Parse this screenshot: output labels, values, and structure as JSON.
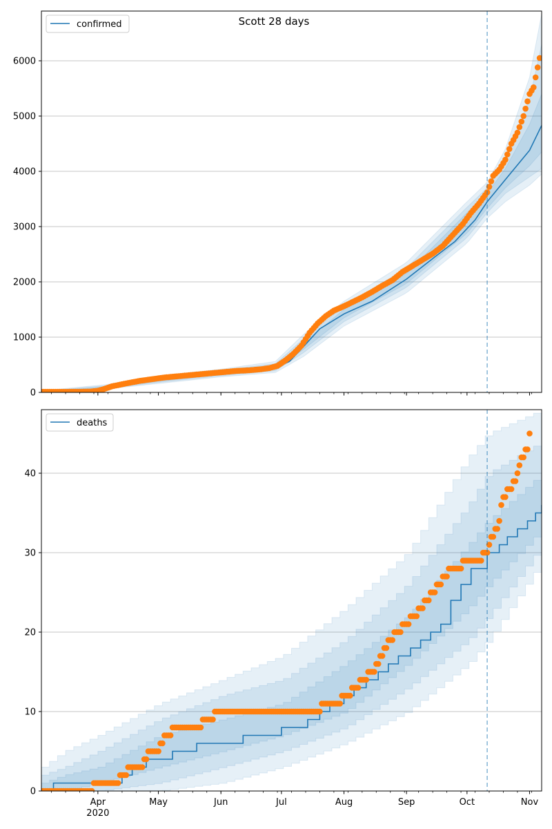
{
  "figure_title": "Scott 28 days",
  "colors": {
    "model": "#1f77b4",
    "observed": "#ff7f0e",
    "band": "#1f77b4",
    "grid": "#b0b0b0",
    "vline": "#1f77b4"
  },
  "x_ticks": [
    {
      "label": "Apr",
      "date": "2020-04-01"
    },
    {
      "label": "May",
      "date": "2020-05-01"
    },
    {
      "label": "Jun",
      "date": "2020-06-01"
    },
    {
      "label": "Jul",
      "date": "2020-07-01"
    },
    {
      "label": "Aug",
      "date": "2020-08-01"
    },
    {
      "label": "Sep",
      "date": "2020-09-01"
    },
    {
      "label": "Oct",
      "date": "2020-10-01"
    },
    {
      "label": "Nov",
      "date": "2020-11-01"
    }
  ],
  "x_year_label": "2020",
  "chart_data": [
    {
      "type": "line",
      "legend": "confirmed",
      "legend_position": "top-left",
      "grid": "horizontal",
      "xlim": [
        "2020-03-04",
        "2020-11-07"
      ],
      "ylim": [
        0,
        6900
      ],
      "y_ticks": [
        0,
        1000,
        2000,
        3000,
        4000,
        5000,
        6000
      ],
      "forecast_start": "2020-10-11",
      "model": {
        "x": [
          "2020-03-04",
          "2020-03-25",
          "2020-04-05",
          "2020-04-15",
          "2020-05-01",
          "2020-05-15",
          "2020-06-01",
          "2020-06-20",
          "2020-06-28",
          "2020-07-05",
          "2020-07-12",
          "2020-07-20",
          "2020-08-01",
          "2020-08-15",
          "2020-09-01",
          "2020-09-15",
          "2020-09-25",
          "2020-10-05",
          "2020-10-11",
          "2020-10-20",
          "2020-11-01",
          "2020-11-07"
        ],
        "y": [
          5,
          20,
          90,
          150,
          230,
          280,
          350,
          400,
          450,
          560,
          830,
          1150,
          1420,
          1650,
          2050,
          2450,
          2730,
          3120,
          3450,
          3850,
          4380,
          4830
        ]
      },
      "bands": [
        {
          "x": [
            "2020-03-04",
            "2020-04-05",
            "2020-05-01",
            "2020-06-01",
            "2020-06-28",
            "2020-07-12",
            "2020-08-01",
            "2020-09-01",
            "2020-10-01",
            "2020-10-11",
            "2020-10-20",
            "2020-11-01",
            "2020-11-07"
          ],
          "low": [
            0,
            60,
            160,
            280,
            360,
            650,
            1200,
            1800,
            2700,
            3150,
            3450,
            3750,
            3950
          ],
          "high": [
            30,
            140,
            300,
            420,
            560,
            1050,
            1650,
            2350,
            3450,
            3800,
            4400,
            5700,
            6850
          ]
        },
        {
          "x": [
            "2020-03-04",
            "2020-04-05",
            "2020-05-01",
            "2020-06-01",
            "2020-06-28",
            "2020-07-12",
            "2020-08-01",
            "2020-09-01",
            "2020-10-01",
            "2020-10-11",
            "2020-10-20",
            "2020-11-01",
            "2020-11-07"
          ],
          "low": [
            0,
            70,
            180,
            300,
            390,
            720,
            1280,
            1900,
            2800,
            3250,
            3600,
            3900,
            4050
          ],
          "high": [
            20,
            120,
            270,
            400,
            520,
            970,
            1560,
            2250,
            3350,
            3700,
            4250,
            5300,
            6300
          ]
        },
        {
          "x": [
            "2020-03-04",
            "2020-04-05",
            "2020-05-01",
            "2020-06-01",
            "2020-06-28",
            "2020-07-12",
            "2020-08-01",
            "2020-09-01",
            "2020-10-01",
            "2020-10-11",
            "2020-10-20",
            "2020-11-01",
            "2020-11-07"
          ],
          "low": [
            0,
            80,
            200,
            320,
            420,
            780,
            1350,
            1970,
            2880,
            3330,
            3700,
            4100,
            4350
          ],
          "high": [
            12,
            105,
            250,
            380,
            490,
            900,
            1500,
            2150,
            3250,
            3600,
            4050,
            4850,
            5400
          ]
        }
      ],
      "observed": {
        "x": [
          "2020-03-04",
          "2020-03-10",
          "2020-03-16",
          "2020-03-22",
          "2020-03-28",
          "2020-04-01",
          "2020-04-04",
          "2020-04-08",
          "2020-04-12",
          "2020-04-16",
          "2020-04-22",
          "2020-04-28",
          "2020-05-04",
          "2020-05-10",
          "2020-05-16",
          "2020-05-22",
          "2020-05-28",
          "2020-06-03",
          "2020-06-09",
          "2020-06-15",
          "2020-06-21",
          "2020-06-25",
          "2020-06-29",
          "2020-07-03",
          "2020-07-07",
          "2020-07-11",
          "2020-07-15",
          "2020-07-19",
          "2020-07-23",
          "2020-07-27",
          "2020-08-01",
          "2020-08-05",
          "2020-08-10",
          "2020-08-15",
          "2020-08-20",
          "2020-08-25",
          "2020-08-30",
          "2020-09-04",
          "2020-09-09",
          "2020-09-14",
          "2020-09-19",
          "2020-09-24",
          "2020-09-29",
          "2020-10-03",
          "2020-10-07",
          "2020-10-11",
          "2020-10-14",
          "2020-10-17",
          "2020-10-20",
          "2020-10-23",
          "2020-10-26",
          "2020-10-29",
          "2020-11-01",
          "2020-11-03",
          "2020-11-05",
          "2020-11-06"
        ],
        "y": [
          10,
          10,
          10,
          12,
          15,
          30,
          60,
          110,
          140,
          170,
          210,
          240,
          270,
          290,
          310,
          330,
          350,
          370,
          390,
          400,
          420,
          440,
          480,
          580,
          700,
          850,
          1080,
          1250,
          1380,
          1480,
          1560,
          1630,
          1720,
          1820,
          1930,
          2030,
          2180,
          2290,
          2400,
          2510,
          2650,
          2850,
          3050,
          3250,
          3420,
          3620,
          3920,
          4030,
          4210,
          4500,
          4700,
          5000,
          5400,
          5520,
          5880,
          6050
        ]
      }
    },
    {
      "type": "line",
      "legend": "deaths",
      "legend_position": "top-left",
      "grid": "horizontal",
      "xlim": [
        "2020-03-04",
        "2020-11-07"
      ],
      "ylim": [
        0,
        48
      ],
      "y_ticks": [
        0,
        10,
        20,
        30,
        40
      ],
      "forecast_start": "2020-10-11",
      "model": {
        "x": [
          "2020-03-04",
          "2020-03-10",
          "2020-04-13",
          "2020-04-18",
          "2020-04-25",
          "2020-05-08",
          "2020-05-20",
          "2020-06-12",
          "2020-07-01",
          "2020-07-14",
          "2020-07-20",
          "2020-07-25",
          "2020-08-01",
          "2020-08-06",
          "2020-08-12",
          "2020-08-18",
          "2020-08-23",
          "2020-08-28",
          "2020-09-03",
          "2020-09-08",
          "2020-09-13",
          "2020-09-18",
          "2020-09-23",
          "2020-09-28",
          "2020-10-03",
          "2020-10-11",
          "2020-10-17",
          "2020-10-21",
          "2020-10-26",
          "2020-10-31",
          "2020-11-04",
          "2020-11-07"
        ],
        "y": [
          0,
          1,
          2,
          3,
          4,
          5,
          6,
          7,
          8,
          9,
          10,
          11,
          12,
          13,
          14,
          15,
          16,
          17,
          18,
          19,
          20,
          21,
          24,
          26,
          28,
          30,
          31,
          32,
          33,
          34,
          35,
          36
        ],
        "step": true
      },
      "bands": [
        {
          "x": [
            "2020-03-04",
            "2020-03-15",
            "2020-04-01",
            "2020-05-01",
            "2020-06-01",
            "2020-07-01",
            "2020-08-01",
            "2020-09-01",
            "2020-10-01",
            "2020-10-11",
            "2020-11-07"
          ],
          "low": [
            0,
            0,
            0,
            0,
            1,
            3,
            6,
            10,
            16,
            19,
            29
          ],
          "high": [
            3,
            5,
            7,
            11,
            14,
            17,
            23,
            30,
            42,
            45,
            48
          ]
        },
        {
          "x": [
            "2020-03-04",
            "2020-03-15",
            "2020-04-01",
            "2020-05-01",
            "2020-06-01",
            "2020-07-01",
            "2020-08-01",
            "2020-09-01",
            "2020-10-01",
            "2020-10-11",
            "2020-11-07"
          ],
          "low": [
            0,
            0,
            0,
            1,
            3,
            5,
            8,
            13,
            19,
            22,
            31
          ],
          "high": [
            2,
            3,
            5,
            9,
            12,
            14,
            19,
            26,
            36,
            40,
            44
          ]
        },
        {
          "x": [
            "2020-03-04",
            "2020-03-15",
            "2020-04-01",
            "2020-05-01",
            "2020-06-01",
            "2020-07-01",
            "2020-08-01",
            "2020-09-01",
            "2020-10-01",
            "2020-10-11",
            "2020-11-07"
          ],
          "low": [
            0,
            0,
            1,
            3,
            5,
            7,
            10,
            16,
            23,
            26,
            33
          ],
          "high": [
            1,
            2,
            3,
            7,
            9,
            11,
            16,
            22,
            31,
            34,
            40
          ]
        }
      ],
      "observed": {
        "x": [
          "2020-03-04",
          "2020-03-10",
          "2020-03-16",
          "2020-03-22",
          "2020-03-28",
          "2020-04-01",
          "2020-04-05",
          "2020-04-10",
          "2020-04-14",
          "2020-04-17",
          "2020-04-22",
          "2020-04-25",
          "2020-04-27",
          "2020-04-30",
          "2020-05-05",
          "2020-05-10",
          "2020-05-15",
          "2020-05-20",
          "2020-05-25",
          "2020-06-01",
          "2020-06-10",
          "2020-06-20",
          "2020-07-01",
          "2020-07-10",
          "2020-07-19",
          "2020-07-22",
          "2020-07-27",
          "2020-08-03",
          "2020-08-06",
          "2020-08-11",
          "2020-08-15",
          "2020-08-18",
          "2020-08-21",
          "2020-08-24",
          "2020-08-28",
          "2020-09-01",
          "2020-09-05",
          "2020-09-08",
          "2020-09-11",
          "2020-09-14",
          "2020-09-17",
          "2020-09-20",
          "2020-09-24",
          "2020-09-27",
          "2020-10-01",
          "2020-10-06",
          "2020-10-11",
          "2020-10-13",
          "2020-10-16",
          "2020-10-19",
          "2020-10-22",
          "2020-10-25",
          "2020-10-27",
          "2020-10-29",
          "2020-10-31",
          "2020-11-01"
        ],
        "y": [
          0,
          0,
          0,
          0,
          0,
          1,
          1,
          1,
          2,
          3,
          3,
          4,
          5,
          5,
          7,
          8,
          8,
          8,
          9,
          10,
          10,
          10,
          10,
          10,
          10,
          11,
          11,
          12,
          13,
          14,
          15,
          16,
          18,
          19,
          20,
          21,
          22,
          23,
          24,
          25,
          26,
          27,
          28,
          28,
          29,
          29,
          30,
          32,
          33,
          37,
          38,
          39,
          41,
          42,
          43,
          45
        ]
      }
    }
  ]
}
